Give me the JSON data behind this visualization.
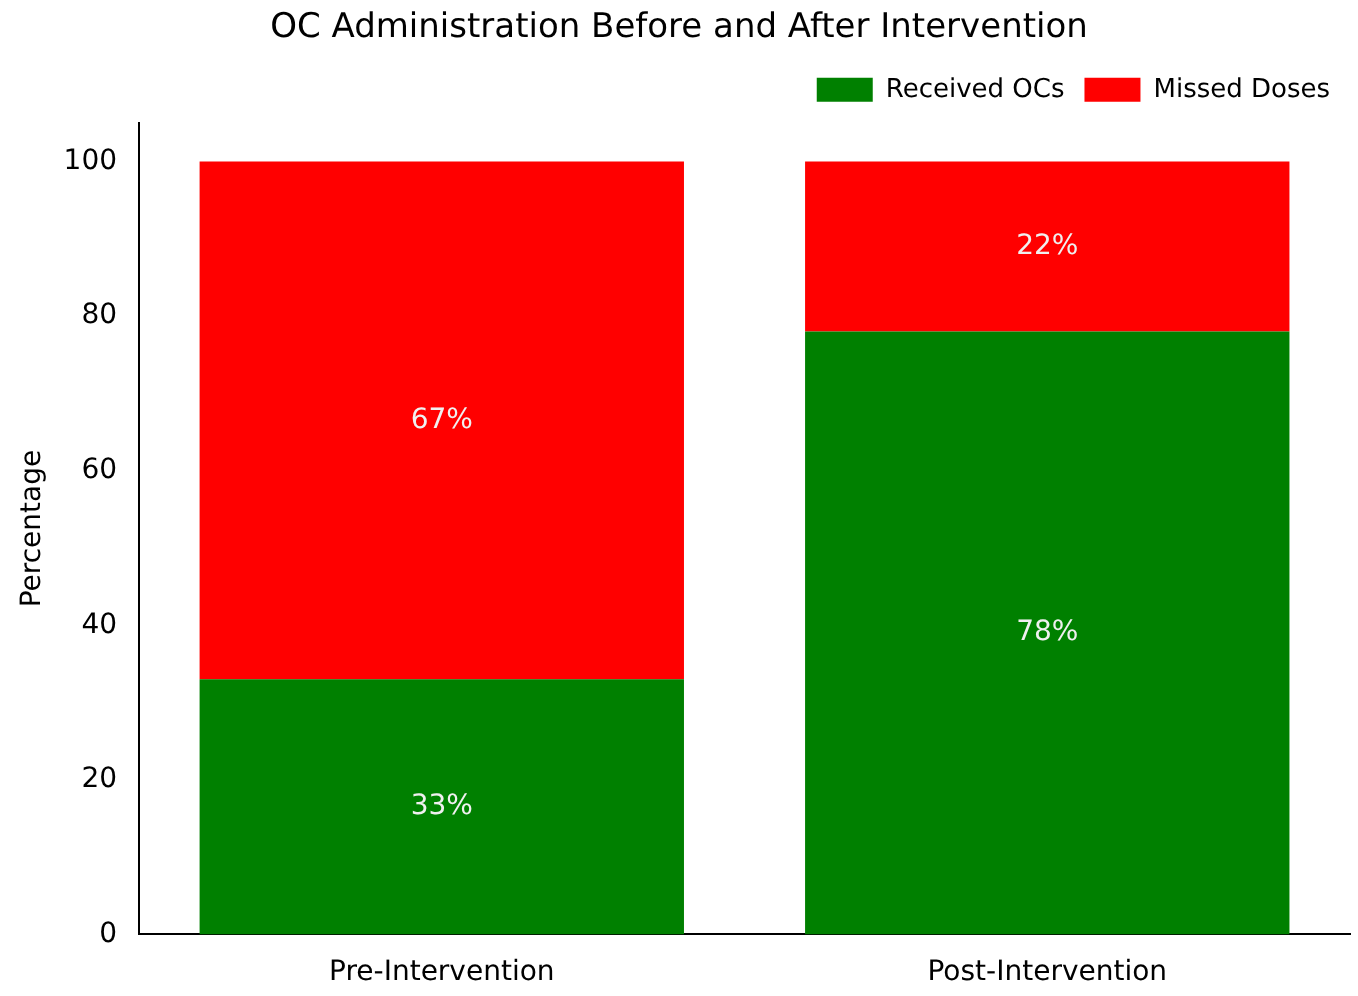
{
  "chart_data": {
    "type": "bar",
    "title": "OC Administration Before and After Intervention",
    "ylabel": "Percentage",
    "categories": [
      "Pre-Intervention",
      "Post-Intervention"
    ],
    "stacked": true,
    "series": [
      {
        "name": "Received OCs",
        "color": "#008000",
        "values": [
          33,
          78
        ],
        "value_labels": [
          "33%",
          "78%"
        ]
      },
      {
        "name": "Missed Doses",
        "color": "#ff0000",
        "values": [
          67,
          22
        ],
        "value_labels": [
          "67%",
          "22%"
        ]
      }
    ],
    "ylim": [
      0,
      105
    ],
    "yticks": [
      0,
      20,
      40,
      60,
      80,
      100
    ],
    "grid": false,
    "legend": "top right"
  }
}
